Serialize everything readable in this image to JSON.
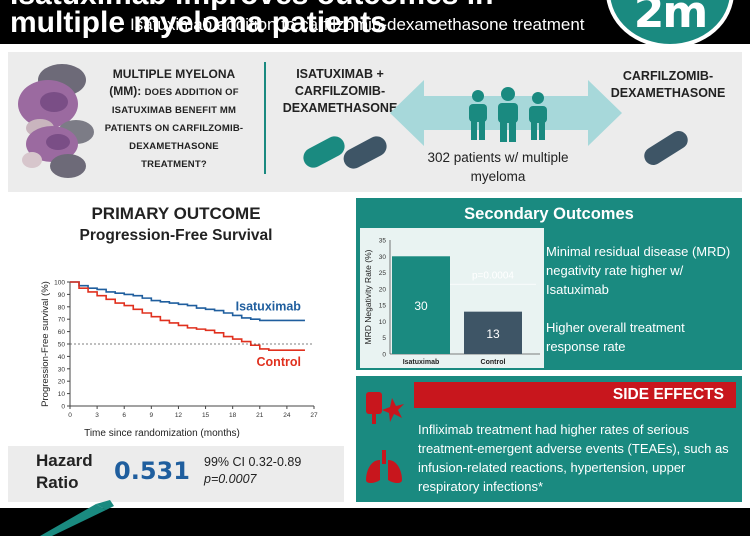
{
  "header": {
    "title_line1": "Isatuximab improves outcomes in",
    "title_line2": "multiple myeloma patients",
    "logo_text": "2m"
  },
  "intro": {
    "question_bold": "MULTIPLE MYELONA (MM):",
    "question_rest": "DOES ADDITION OF ISATUXIMAB BENEFIT MM PATIENTS ON CARFILZOMIB-DEXAMETHASONE TREATMENT?"
  },
  "arms": {
    "left_label": "ISATUXIMAB + CARFILZOMIB-DEXAMETHASONE",
    "right_label": "CARFILZOMIB-DEXAMETHASONE",
    "patients": "302 patients w/ multiple myeloma"
  },
  "primary": {
    "title": "PRIMARY OUTCOME",
    "subtitle": "Progression-Free Survival"
  },
  "km_chart": {
    "type": "line",
    "xlabel": "Time since randomization (months)",
    "ylabel": "Progression-Free survival (%)",
    "xlim": [
      0,
      27
    ],
    "ylim": [
      0,
      100
    ],
    "xticks": [
      "0",
      "3",
      "6",
      "9",
      "12",
      "15",
      "18",
      "21",
      "24",
      "27"
    ],
    "yticks": [
      "0",
      "10",
      "20",
      "30",
      "40",
      "50",
      "60",
      "70",
      "80",
      "90",
      "100"
    ],
    "series": [
      {
        "name": "Isatuximab",
        "color": "#1f5e9e",
        "x": [
          0,
          1,
          2,
          3,
          4,
          5,
          6,
          7,
          8,
          9,
          10,
          11,
          12,
          13,
          14,
          15,
          16,
          17,
          18,
          19,
          20,
          21,
          22,
          23,
          24,
          25,
          26
        ],
        "y": [
          100,
          97,
          95,
          94,
          92,
          91,
          90,
          89,
          87,
          85,
          84,
          83,
          82,
          81,
          79,
          78,
          77,
          75,
          73,
          71,
          70,
          69,
          69,
          69,
          69,
          69,
          69
        ]
      },
      {
        "name": "Control",
        "color": "#e0301e",
        "x": [
          0,
          1,
          2,
          3,
          4,
          5,
          6,
          7,
          8,
          9,
          10,
          11,
          12,
          13,
          14,
          15,
          16,
          17,
          18,
          19,
          20,
          21,
          22,
          23,
          24,
          25,
          26
        ],
        "y": [
          100,
          95,
          92,
          89,
          86,
          83,
          81,
          78,
          75,
          72,
          69,
          67,
          65,
          63,
          62,
          61,
          59,
          56,
          54,
          52,
          49,
          46,
          45,
          45,
          45,
          45,
          45
        ]
      }
    ],
    "reference_lines": [
      50
    ]
  },
  "hazard": {
    "label": "Hazard Ratio",
    "value": "0.531",
    "ci": "99% CI 0.32-0.89",
    "p": "p=0.0007"
  },
  "secondary": {
    "title": "Secondary Outcomes",
    "text1": "Minimal residual disease (MRD) negativity rate higher w/ Isatuximab",
    "text2": "Higher overall treatment response rate"
  },
  "chart_data": {
    "type": "bar",
    "categories": [
      "Isatuximab",
      "Control"
    ],
    "values": [
      30,
      13
    ],
    "colors": [
      "#1a8a80",
      "#3e5566"
    ],
    "ylabel": "MRD Negativity Rate (%)",
    "ylim": [
      0,
      35
    ],
    "yticks": [
      "0",
      "5",
      "10",
      "15",
      "20",
      "25",
      "30",
      "35"
    ],
    "annotation": "p=0.0004"
  },
  "side_effects": {
    "title": "SIDE EFFECTS",
    "text": "Infliximab treatment had higher rates of serious treatment-emergent adverse events (TEAEs), such as infusion-related reactions, hypertension, upper respiratory infections*"
  },
  "conclusion": {
    "text": "Isatuximab addition to carfilzomib-dexamethasone treatment"
  },
  "colors": {
    "teal": "#1a8a80",
    "red": "#c8161d",
    "blue": "#1f5e9e",
    "slate": "#3e5566",
    "panel_gray": "#ececec"
  }
}
